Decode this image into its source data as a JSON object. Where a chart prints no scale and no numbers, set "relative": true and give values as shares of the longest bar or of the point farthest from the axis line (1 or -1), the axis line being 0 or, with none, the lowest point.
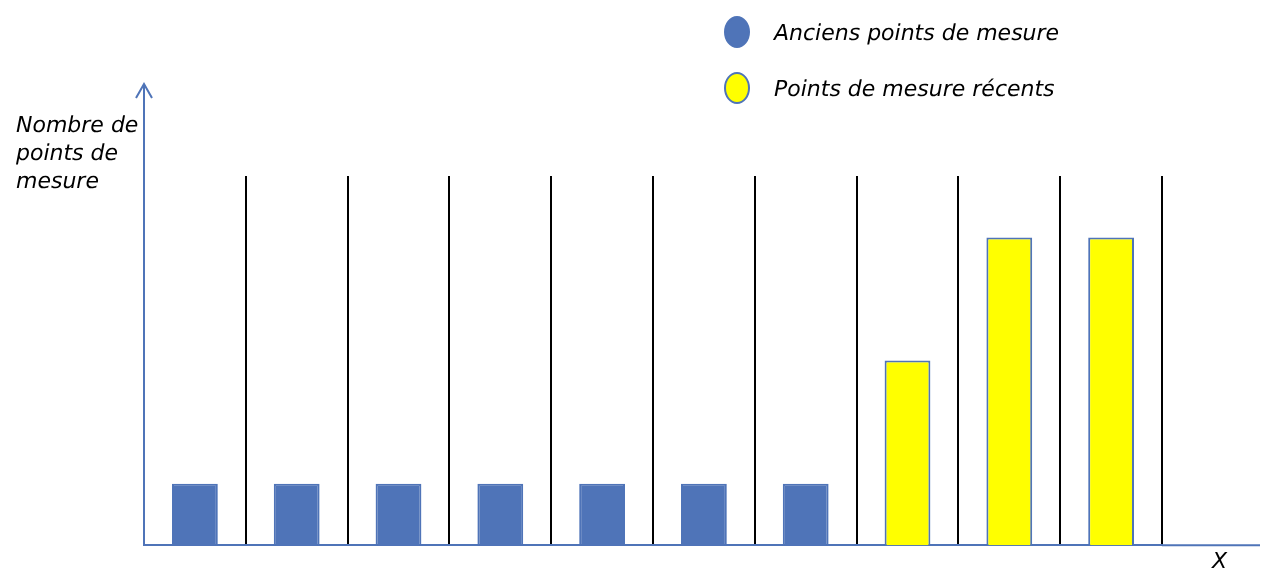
{
  "chart_data": {
    "type": "bar",
    "stacked": true,
    "relative": true,
    "grid": "x",
    "legend": "top right",
    "xlabel": "X",
    "ylabel": "Nombre de points de mesure",
    "categories": [
      null,
      null,
      null,
      null,
      null,
      null,
      null,
      null,
      null,
      null
    ],
    "series": [
      {
        "name": "Anciens points de mesure",
        "color": "#4f74b8",
        "values": [
          0.2,
          0.2,
          0.2,
          0.2,
          0.2,
          0.2,
          0.2,
          null,
          null,
          null
        ]
      },
      {
        "name": "Points de mesure récents",
        "color": "#ffff00",
        "values": [
          null,
          null,
          null,
          null,
          null,
          null,
          null,
          0.6,
          1,
          1
        ]
      }
    ]
  }
}
